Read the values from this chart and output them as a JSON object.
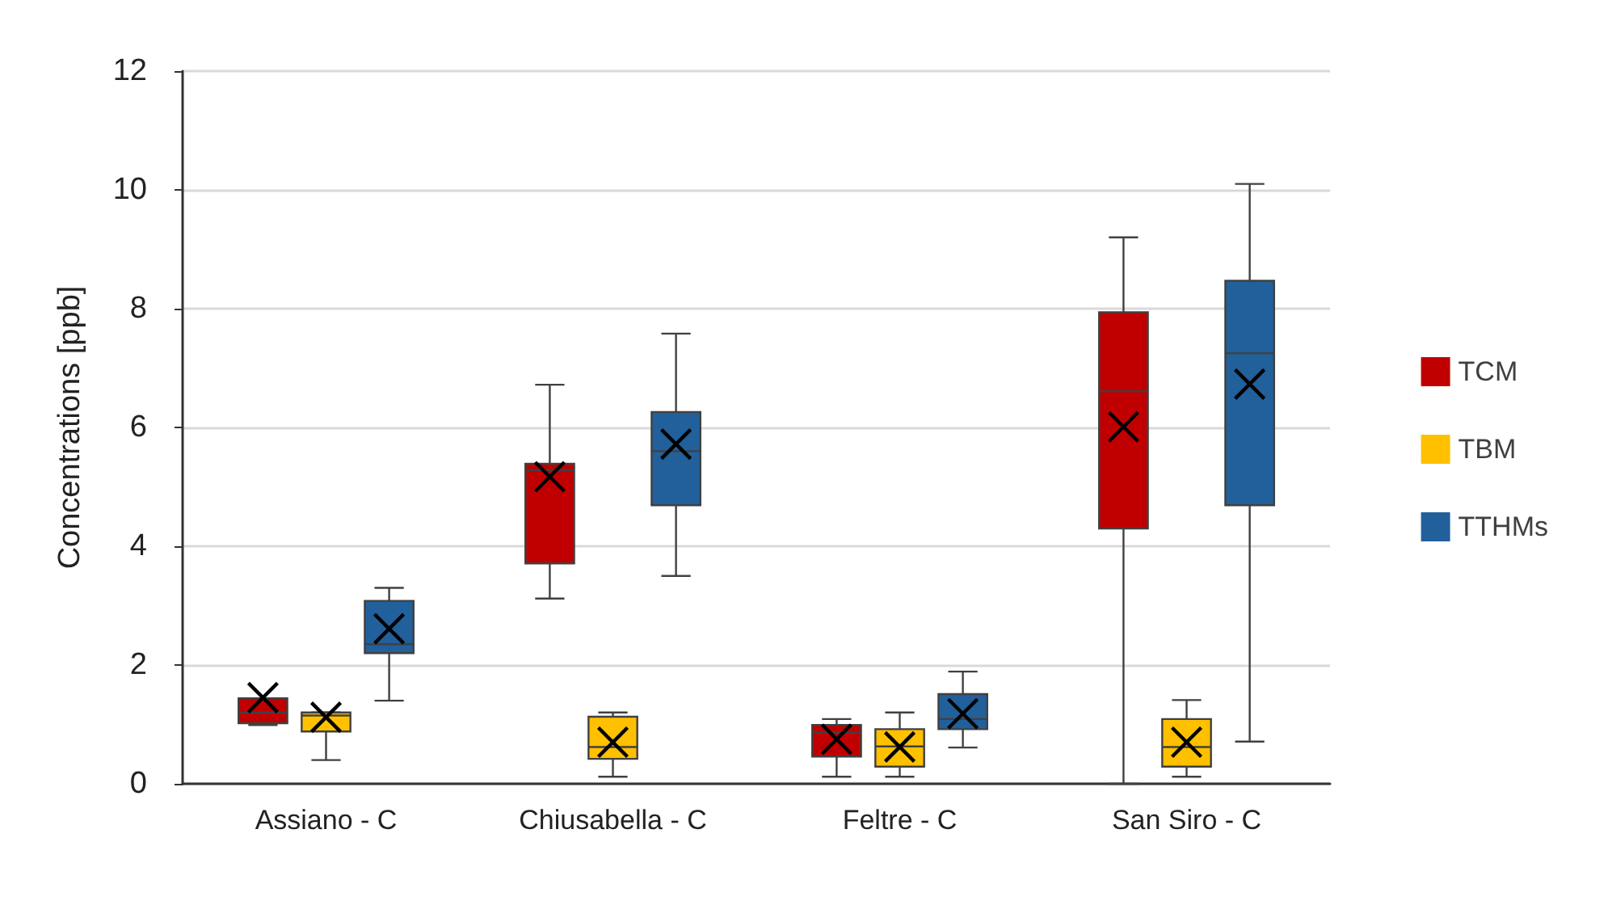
{
  "chart_data": {
    "type": "box",
    "ylabel": "Concentrations [ppb]",
    "categories": [
      "Assiano - C",
      "Chiusabella - C",
      "Feltre - C",
      "San Siro - C"
    ],
    "ylim": [
      0,
      12
    ],
    "yticks": [
      0,
      2,
      4,
      6,
      8,
      10,
      12
    ],
    "grid": "y",
    "legend": "right",
    "series": [
      {
        "name": "TCM",
        "color": "#c00000",
        "boxes": [
          {
            "low": 0.99,
            "q1": 1.02,
            "median": 1.2,
            "q3": 1.44,
            "high": 1.44,
            "mean": 1.45
          },
          {
            "low": 3.12,
            "q1": 3.71,
            "median": 5.28,
            "q3": 5.39,
            "high": 6.72,
            "mean": 5.17
          },
          {
            "low": 0.12,
            "q1": 0.46,
            "median": 0.86,
            "q3": 0.99,
            "high": 1.09,
            "mean": 0.75
          },
          {
            "low": 0,
            "q1": 4.3,
            "median": 6.61,
            "q3": 7.94,
            "high": 9.2,
            "mean": 6.01
          }
        ]
      },
      {
        "name": "TBM",
        "color": "#ffc000",
        "boxes": [
          {
            "low": 0.4,
            "q1": 0.88,
            "median": 1.15,
            "q3": 1.2,
            "high": 1.2,
            "mean": 1.12
          },
          {
            "low": 0.12,
            "q1": 0.42,
            "median": 0.62,
            "q3": 1.13,
            "high": 1.2,
            "mean": 0.7
          },
          {
            "low": 0.12,
            "q1": 0.29,
            "median": 0.63,
            "q3": 0.92,
            "high": 1.2,
            "mean": 0.62
          },
          {
            "low": 0.12,
            "q1": 0.29,
            "median": 0.62,
            "q3": 1.09,
            "high": 1.41,
            "mean": 0.7
          }
        ]
      },
      {
        "name": "TTHMs",
        "color": "#22609c",
        "boxes": [
          {
            "low": 1.4,
            "q1": 2.2,
            "median": 2.35,
            "q3": 3.08,
            "high": 3.3,
            "mean": 2.61
          },
          {
            "low": 3.5,
            "q1": 4.69,
            "median": 5.6,
            "q3": 6.26,
            "high": 7.58,
            "mean": 5.72
          },
          {
            "low": 0.61,
            "q1": 0.92,
            "median": 1.09,
            "q3": 1.51,
            "high": 1.89,
            "mean": 1.18
          },
          {
            "low": 0.71,
            "q1": 4.69,
            "median": 7.25,
            "q3": 8.47,
            "high": 10.1,
            "mean": 6.73
          }
        ]
      }
    ]
  }
}
